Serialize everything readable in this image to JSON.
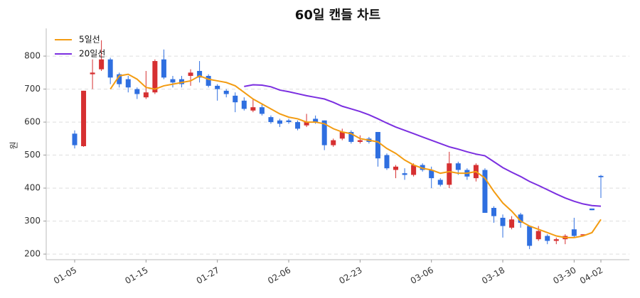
{
  "chart_data": {
    "type": "candlestick",
    "title": "60일 캔들 차트",
    "ylabel": "원",
    "categories": [
      "01-05",
      null,
      null,
      null,
      null,
      null,
      null,
      null,
      "01-15",
      null,
      null,
      null,
      null,
      null,
      null,
      null,
      "01-27",
      null,
      null,
      null,
      null,
      null,
      null,
      null,
      "02-06",
      null,
      null,
      null,
      null,
      null,
      null,
      null,
      "02-23",
      null,
      null,
      null,
      null,
      null,
      null,
      null,
      "03-06",
      null,
      null,
      null,
      null,
      null,
      null,
      null,
      "03-18",
      null,
      null,
      null,
      null,
      null,
      null,
      null,
      "03-30",
      null,
      null,
      "04-02"
    ],
    "open": [
      565,
      527,
      745,
      760,
      790,
      745,
      730,
      700,
      675,
      690,
      790,
      730,
      730,
      740,
      755,
      740,
      710,
      695,
      680,
      665,
      635,
      645,
      615,
      605,
      605,
      600,
      590,
      610,
      605,
      530,
      550,
      570,
      540,
      550,
      570,
      500,
      455,
      445,
      440,
      470,
      455,
      425,
      410,
      475,
      455,
      430,
      455,
      340,
      310,
      280,
      320,
      285,
      245,
      255,
      240,
      245,
      275,
      260,
      338,
      437
    ],
    "high": [
      575,
      695,
      790,
      848,
      795,
      750,
      740,
      705,
      755,
      790,
      820,
      740,
      740,
      760,
      785,
      745,
      715,
      700,
      690,
      675,
      670,
      655,
      620,
      610,
      610,
      605,
      625,
      620,
      605,
      550,
      580,
      575,
      560,
      555,
      570,
      505,
      470,
      460,
      475,
      475,
      465,
      430,
      510,
      480,
      460,
      475,
      460,
      345,
      320,
      315,
      325,
      285,
      285,
      260,
      250,
      260,
      310,
      260,
      338,
      440
    ],
    "low": [
      520,
      525,
      700,
      755,
      715,
      705,
      690,
      670,
      670,
      685,
      730,
      705,
      705,
      710,
      720,
      705,
      665,
      675,
      630,
      635,
      630,
      620,
      595,
      585,
      595,
      575,
      585,
      595,
      515,
      525,
      545,
      535,
      535,
      535,
      465,
      455,
      430,
      425,
      435,
      450,
      400,
      405,
      400,
      440,
      425,
      420,
      325,
      295,
      250,
      275,
      280,
      215,
      240,
      230,
      230,
      230,
      250,
      260,
      333,
      370
    ],
    "close": [
      530,
      695,
      750,
      790,
      735,
      715,
      705,
      685,
      690,
      785,
      735,
      720,
      715,
      750,
      735,
      710,
      700,
      685,
      660,
      640,
      645,
      625,
      600,
      595,
      600,
      580,
      600,
      600,
      530,
      545,
      570,
      540,
      545,
      540,
      490,
      460,
      465,
      440,
      470,
      455,
      430,
      410,
      475,
      455,
      435,
      470,
      325,
      315,
      285,
      305,
      295,
      225,
      270,
      240,
      245,
      255,
      255,
      260,
      333,
      433
    ],
    "up_color": "#d63031",
    "down_color": "#2f6fe0",
    "series": [
      {
        "name": "5일선",
        "color": "#f39c12",
        "values": [
          null,
          null,
          null,
          null,
          700,
          740,
          745,
          730,
          705,
          700,
          710,
          715,
          720,
          725,
          740,
          730,
          725,
          720,
          710,
          690,
          670,
          655,
          640,
          625,
          615,
          610,
          600,
          600,
          595,
          580,
          570,
          565,
          550,
          545,
          540,
          520,
          505,
          485,
          470,
          460,
          455,
          445,
          450,
          445,
          445,
          450,
          430,
          390,
          355,
          330,
          300,
          285,
          275,
          265,
          255,
          250,
          250,
          255,
          265,
          305
        ]
      },
      {
        "name": "20일선",
        "color": "#7b2fe0",
        "values": [
          null,
          null,
          null,
          null,
          null,
          null,
          null,
          null,
          null,
          null,
          null,
          null,
          null,
          null,
          null,
          null,
          null,
          null,
          null,
          708,
          713,
          712,
          707,
          697,
          692,
          686,
          680,
          675,
          670,
          660,
          648,
          640,
          632,
          622,
          610,
          597,
          585,
          575,
          565,
          555,
          545,
          535,
          525,
          518,
          510,
          503,
          498,
          480,
          462,
          448,
          435,
          420,
          408,
          395,
          382,
          370,
          360,
          352,
          347,
          345
        ]
      }
    ],
    "ylim": [
      183,
      884
    ],
    "yticks": [
      200,
      300,
      400,
      500,
      600,
      700,
      800
    ],
    "grid": true,
    "legend": "upper-left"
  }
}
